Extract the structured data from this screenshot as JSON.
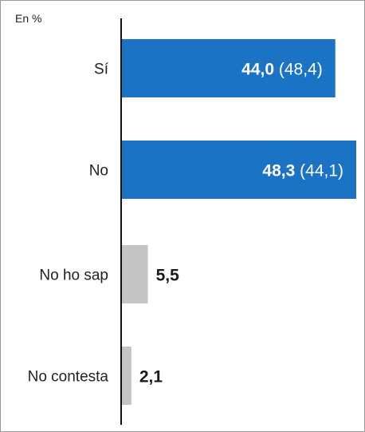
{
  "chart_data": {
    "type": "bar",
    "orientation": "horizontal",
    "unit_label": "En %",
    "categories": [
      "Sí",
      "No",
      "No ho sap",
      "No contesta"
    ],
    "values": [
      44.0,
      48.3,
      5.5,
      2.1
    ],
    "previous_values": [
      48.4,
      44.1,
      null,
      null
    ],
    "value_labels": [
      "44,0",
      "48,3",
      "5,5",
      "2,1"
    ],
    "previous_labels": [
      "(48,4)",
      "(44,1)",
      "",
      ""
    ],
    "colors": [
      "#1a73c4",
      "#1a73c4",
      "#c4c4c4",
      "#c4c4c4"
    ],
    "axis_color": "#111111",
    "xlim": [
      0,
      50
    ],
    "grid": false,
    "legend": "none"
  }
}
